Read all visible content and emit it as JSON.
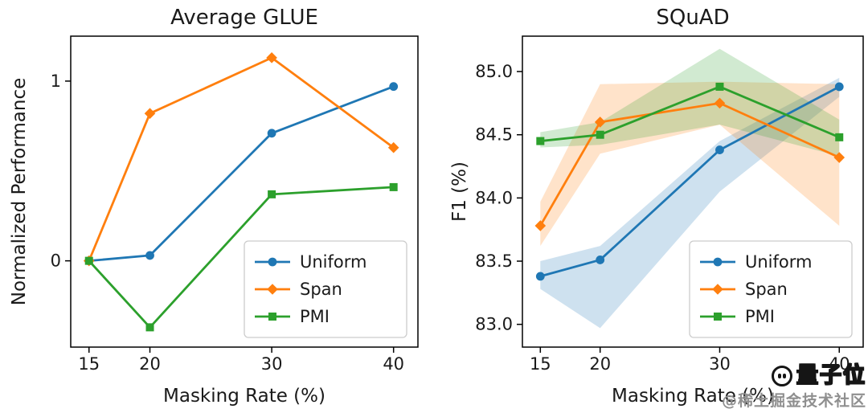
{
  "style": {
    "background": "#ffffff",
    "text_color": "#1a1a1a",
    "spine_color": "#000000",
    "legend_border": "#cccccc",
    "band_opacity": 0.22
  },
  "series_colors": {
    "uniform": "#1f77b4",
    "span": "#ff7f0e",
    "pmi": "#2ca02c"
  },
  "watermark": {
    "brand": "量子位",
    "community": "@稀土掘金技术社区",
    "logo_icon": "qbitai-robot-logo"
  },
  "chart_data": [
    {
      "type": "line",
      "id": "average-glue",
      "title": "Average GLUE",
      "xlabel": "Masking Rate (%)",
      "ylabel": "Normalized Performance",
      "x": [
        15,
        20,
        30,
        40
      ],
      "xticklabels": [
        "15",
        "20",
        "30",
        "40"
      ],
      "yticks": [
        0,
        1
      ],
      "yticklabels": [
        "0",
        "1"
      ],
      "xlim": [
        13.5,
        42
      ],
      "ylim": [
        -0.48,
        1.25
      ],
      "grid": false,
      "legend_position": "lower right",
      "series": [
        {
          "name": "Uniform",
          "marker": "circle",
          "color": "#1f77b4",
          "values": [
            0.0,
            0.03,
            0.71,
            0.97
          ]
        },
        {
          "name": "Span",
          "marker": "diamond",
          "color": "#ff7f0e",
          "values": [
            0.0,
            0.82,
            1.13,
            0.63
          ]
        },
        {
          "name": "PMI",
          "marker": "square",
          "color": "#2ca02c",
          "values": [
            0.0,
            -0.37,
            0.37,
            0.41
          ]
        }
      ]
    },
    {
      "type": "line",
      "id": "squad",
      "title": "SQuAD",
      "xlabel": "Masking Rate (%)",
      "ylabel": "F1 (%)",
      "x": [
        15,
        20,
        30,
        40
      ],
      "xticklabels": [
        "15",
        "20",
        "30",
        "40"
      ],
      "yticks": [
        83.0,
        83.5,
        84.0,
        84.5,
        85.0
      ],
      "yticklabels": [
        "83.0",
        "83.5",
        "84.0",
        "84.5",
        "85.0"
      ],
      "xlim": [
        13.5,
        42
      ],
      "ylim": [
        82.82,
        85.28
      ],
      "grid": false,
      "legend_position": "lower right",
      "series": [
        {
          "name": "Uniform",
          "marker": "circle",
          "color": "#1f77b4",
          "values": [
            83.38,
            83.51,
            84.38,
            84.88
          ],
          "band_lower": [
            83.28,
            82.97,
            84.05,
            84.8
          ],
          "band_upper": [
            83.5,
            83.62,
            84.45,
            84.95
          ]
        },
        {
          "name": "Span",
          "marker": "diamond",
          "color": "#ff7f0e",
          "values": [
            83.78,
            84.6,
            84.75,
            84.32
          ],
          "band_lower": [
            83.62,
            84.35,
            84.58,
            83.78
          ],
          "band_upper": [
            83.97,
            84.9,
            84.92,
            84.9
          ]
        },
        {
          "name": "PMI",
          "marker": "square",
          "color": "#2ca02c",
          "values": [
            84.45,
            84.5,
            84.88,
            84.48
          ],
          "band_lower": [
            84.4,
            84.42,
            84.58,
            84.33
          ],
          "band_upper": [
            84.52,
            84.6,
            85.18,
            84.62
          ]
        }
      ]
    }
  ]
}
